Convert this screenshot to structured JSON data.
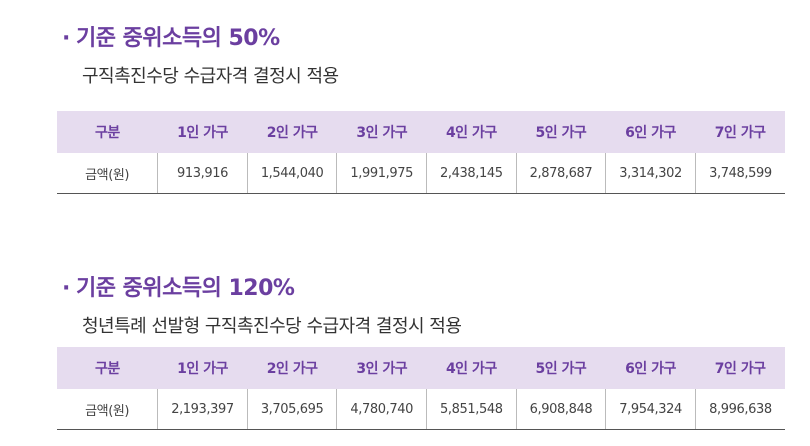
{
  "section1": {
    "bullet": "·",
    "title": "기준 중위소득의 50%",
    "subtitle": "구직촉진수당 수급자격 결정시 적용",
    "headers": [
      "구분",
      "1인 가구",
      "2인 가구",
      "3인 가구",
      "4인 가구",
      "5인 가구",
      "6인 가구",
      "7인 가구"
    ],
    "row_label": "금액(원)",
    "values": [
      "913,916",
      "1,544,040",
      "1,991,975",
      "2,438,145",
      "2,878,687",
      "3,314,302",
      "3,748,599"
    ]
  },
  "section2": {
    "bullet": "·",
    "title": "기준 중위소득의 120%",
    "subtitle": "청년특례 선발형 구직촉진수당 수급자격 결정시 적용",
    "headers": [
      "구분",
      "1인 가구",
      "2인 가구",
      "3인 가구",
      "4인 가구",
      "5인 가구",
      "6인 가구",
      "7인 가구"
    ],
    "row_label": "금액(원)",
    "values": [
      "2,193,397",
      "3,705,695",
      "4,780,740",
      "5,851,548",
      "6,908,848",
      "7,954,324",
      "8,996,638"
    ]
  },
  "colors": {
    "accent": "#6b3fa0",
    "header_bg": "#e6dcef"
  }
}
